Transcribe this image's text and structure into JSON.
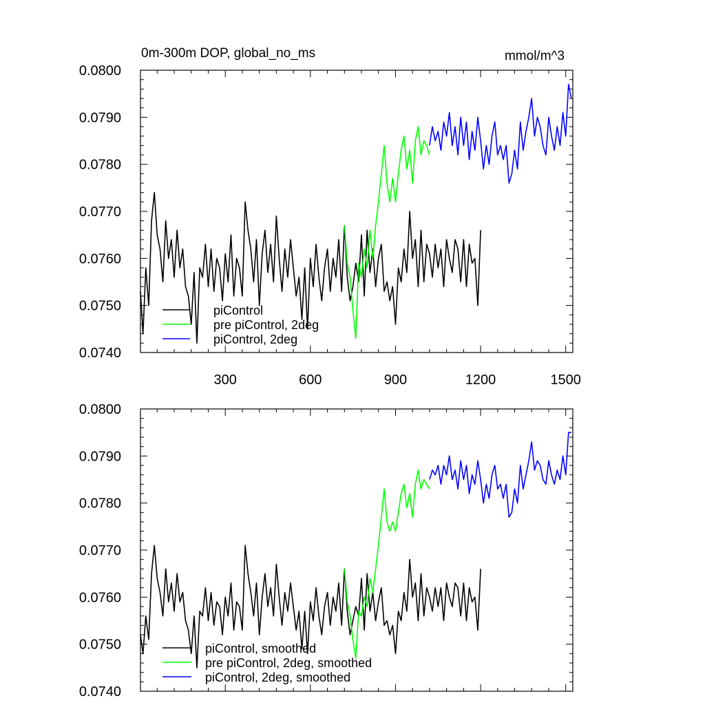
{
  "chart_data": [
    {
      "type": "line",
      "title": "0m-300m DOP, global_no_ms",
      "units": "mmol/m^3",
      "xlim": [
        1,
        1525
      ],
      "ylim": [
        0.074,
        0.08
      ],
      "xticks": [
        300,
        600,
        900,
        1200,
        1500
      ],
      "xtick_labels": [
        "300",
        "600",
        "900",
        "1200",
        "1500"
      ],
      "yticks": [
        0.074,
        0.075,
        0.076,
        0.077,
        0.078,
        0.079,
        0.08
      ],
      "ytick_labels": [
        "0.0740",
        "0.0750",
        "0.0760",
        "0.0770",
        "0.0780",
        "0.0790",
        "0.0800"
      ],
      "legend_position": "bottom-left",
      "series": [
        {
          "name": "piControl",
          "color": "#000000",
          "x": [
            1,
            10,
            20,
            30,
            40,
            50,
            60,
            70,
            80,
            90,
            100,
            110,
            120,
            130,
            140,
            150,
            160,
            170,
            180,
            190,
            200,
            210,
            220,
            230,
            240,
            250,
            260,
            270,
            280,
            290,
            300,
            310,
            320,
            330,
            340,
            350,
            360,
            370,
            380,
            390,
            400,
            410,
            420,
            430,
            440,
            450,
            460,
            470,
            480,
            490,
            500,
            510,
            520,
            530,
            540,
            550,
            560,
            570,
            580,
            590,
            600,
            610,
            620,
            630,
            640,
            650,
            660,
            670,
            680,
            690,
            700,
            710,
            720,
            730,
            740,
            750,
            760,
            770,
            780,
            790,
            800,
            810,
            820,
            830,
            840,
            850,
            860,
            870,
            880,
            890,
            900,
            910,
            920,
            930,
            940,
            950,
            960,
            970,
            980,
            990,
            1000,
            1010,
            1020,
            1030,
            1040,
            1050,
            1060,
            1070,
            1080,
            1090,
            1100,
            1110,
            1120,
            1130,
            1140,
            1150,
            1160,
            1170,
            1180,
            1190,
            1200
          ],
          "y": [
            0.0753,
            0.0744,
            0.0758,
            0.075,
            0.0768,
            0.0774,
            0.0765,
            0.0762,
            0.0755,
            0.0768,
            0.076,
            0.0764,
            0.0756,
            0.0766,
            0.0758,
            0.0762,
            0.0754,
            0.0752,
            0.0746,
            0.0757,
            0.0742,
            0.0758,
            0.0756,
            0.0763,
            0.0754,
            0.0762,
            0.0753,
            0.076,
            0.0758,
            0.0751,
            0.0761,
            0.0755,
            0.0765,
            0.0752,
            0.076,
            0.0758,
            0.0752,
            0.0772,
            0.0766,
            0.0762,
            0.0755,
            0.0764,
            0.075,
            0.0761,
            0.0766,
            0.0757,
            0.0763,
            0.0755,
            0.0769,
            0.076,
            0.0753,
            0.0762,
            0.0756,
            0.0764,
            0.0758,
            0.0752,
            0.0756,
            0.0747,
            0.0758,
            0.0745,
            0.076,
            0.0754,
            0.0763,
            0.0756,
            0.0751,
            0.0758,
            0.0762,
            0.0753,
            0.076,
            0.0756,
            0.0764,
            0.0753,
            0.0767,
            0.0756,
            0.0751,
            0.0754,
            0.0759,
            0.0755,
            0.0765,
            0.0752,
            0.0766,
            0.0757,
            0.0762,
            0.0754,
            0.076,
            0.0763,
            0.0753,
            0.0755,
            0.0751,
            0.0754,
            0.0746,
            0.0758,
            0.0755,
            0.0762,
            0.0757,
            0.077,
            0.076,
            0.0764,
            0.0754,
            0.0766,
            0.0755,
            0.0763,
            0.0761,
            0.0756,
            0.0763,
            0.0758,
            0.0762,
            0.0754,
            0.0764,
            0.076,
            0.0757,
            0.0764,
            0.0762,
            0.0755,
            0.0764,
            0.0754,
            0.0763,
            0.0759,
            0.076,
            0.075,
            0.0766
          ]
        },
        {
          "name": "pre piControl, 2deg",
          "color": "#00ff00",
          "x": [
            720,
            730,
            740,
            750,
            760,
            770,
            780,
            790,
            800,
            810,
            820,
            830,
            840,
            850,
            860,
            870,
            880,
            890,
            900,
            910,
            920,
            930,
            940,
            950,
            960,
            970,
            980,
            990,
            1000,
            1010,
            1020
          ],
          "y": [
            0.0767,
            0.0759,
            0.0756,
            0.0749,
            0.0743,
            0.0759,
            0.0756,
            0.0762,
            0.0758,
            0.0766,
            0.076,
            0.0767,
            0.0772,
            0.0778,
            0.0784,
            0.0776,
            0.0772,
            0.0777,
            0.0772,
            0.0778,
            0.0783,
            0.0786,
            0.0779,
            0.0783,
            0.0776,
            0.0785,
            0.0788,
            0.0782,
            0.0785,
            0.0784,
            0.0782
          ]
        },
        {
          "name": "piControl, 2deg",
          "color": "#0000ff",
          "x": [
            1020,
            1030,
            1040,
            1050,
            1060,
            1070,
            1080,
            1090,
            1100,
            1110,
            1120,
            1130,
            1140,
            1150,
            1160,
            1170,
            1180,
            1190,
            1200,
            1210,
            1220,
            1230,
            1240,
            1250,
            1260,
            1270,
            1280,
            1290,
            1300,
            1310,
            1320,
            1330,
            1340,
            1350,
            1360,
            1370,
            1380,
            1390,
            1400,
            1410,
            1420,
            1430,
            1440,
            1450,
            1460,
            1470,
            1480,
            1490,
            1500,
            1510,
            1520
          ],
          "y": [
            0.0784,
            0.0788,
            0.0785,
            0.0787,
            0.0783,
            0.0789,
            0.0786,
            0.0791,
            0.0784,
            0.0788,
            0.0782,
            0.079,
            0.0784,
            0.0789,
            0.0781,
            0.0787,
            0.0783,
            0.079,
            0.0785,
            0.0779,
            0.0784,
            0.078,
            0.0786,
            0.0789,
            0.0782,
            0.0784,
            0.0781,
            0.0784,
            0.0776,
            0.0778,
            0.0783,
            0.0779,
            0.0789,
            0.0783,
            0.0787,
            0.079,
            0.0794,
            0.0786,
            0.079,
            0.0788,
            0.0784,
            0.0782,
            0.079,
            0.0786,
            0.0783,
            0.0788,
            0.0784,
            0.0791,
            0.0786,
            0.0797,
            0.0794
          ]
        }
      ]
    },
    {
      "type": "line",
      "title": "",
      "xlim": [
        1,
        1525
      ],
      "ylim": [
        0.074,
        0.08
      ],
      "xticks": [
        300,
        600,
        900,
        1200,
        1500
      ],
      "yticks": [
        0.074,
        0.075,
        0.076,
        0.077,
        0.078,
        0.079,
        0.08
      ],
      "ytick_labels": [
        "0.0740",
        "0.0750",
        "0.0760",
        "0.0770",
        "0.0780",
        "0.0790",
        "0.0800"
      ],
      "legend_position": "bottom-left",
      "series": [
        {
          "name": "piControl, smoothed",
          "color": "#000000",
          "x": [
            1,
            10,
            20,
            30,
            40,
            50,
            60,
            70,
            80,
            90,
            100,
            110,
            120,
            130,
            140,
            150,
            160,
            170,
            180,
            190,
            200,
            210,
            220,
            230,
            240,
            250,
            260,
            270,
            280,
            290,
            300,
            310,
            320,
            330,
            340,
            350,
            360,
            370,
            380,
            390,
            400,
            410,
            420,
            430,
            440,
            450,
            460,
            470,
            480,
            490,
            500,
            510,
            520,
            530,
            540,
            550,
            560,
            570,
            580,
            590,
            600,
            610,
            620,
            630,
            640,
            650,
            660,
            670,
            680,
            690,
            700,
            710,
            720,
            730,
            740,
            750,
            760,
            770,
            780,
            790,
            800,
            810,
            820,
            830,
            840,
            850,
            860,
            870,
            880,
            890,
            900,
            910,
            920,
            930,
            940,
            950,
            960,
            970,
            980,
            990,
            1000,
            1010,
            1020,
            1030,
            1040,
            1050,
            1060,
            1070,
            1080,
            1090,
            1100,
            1110,
            1120,
            1130,
            1140,
            1150,
            1160,
            1170,
            1180,
            1190,
            1200
          ],
          "y": [
            0.0752,
            0.0748,
            0.0756,
            0.0751,
            0.0765,
            0.0771,
            0.0764,
            0.0761,
            0.0756,
            0.0766,
            0.0759,
            0.0763,
            0.0757,
            0.0765,
            0.0759,
            0.0761,
            0.0755,
            0.0753,
            0.0748,
            0.0756,
            0.0745,
            0.0757,
            0.0756,
            0.0762,
            0.0755,
            0.0761,
            0.0754,
            0.0759,
            0.0758,
            0.0752,
            0.076,
            0.0756,
            0.0763,
            0.0753,
            0.0759,
            0.0758,
            0.0753,
            0.0771,
            0.0765,
            0.0761,
            0.0756,
            0.0763,
            0.0752,
            0.076,
            0.0765,
            0.0758,
            0.0762,
            0.0756,
            0.0767,
            0.076,
            0.0754,
            0.0761,
            0.0757,
            0.0763,
            0.0758,
            0.0753,
            0.0757,
            0.0749,
            0.0757,
            0.0748,
            0.0759,
            0.0755,
            0.0762,
            0.0756,
            0.0752,
            0.0758,
            0.0761,
            0.0754,
            0.076,
            0.0757,
            0.0763,
            0.0754,
            0.0766,
            0.0757,
            0.0752,
            0.0755,
            0.0758,
            0.0756,
            0.0764,
            0.0753,
            0.0765,
            0.0757,
            0.0761,
            0.0755,
            0.0759,
            0.0762,
            0.0754,
            0.0755,
            0.0752,
            0.0754,
            0.0748,
            0.0757,
            0.0755,
            0.0761,
            0.0757,
            0.0768,
            0.076,
            0.0763,
            0.0755,
            0.0765,
            0.0756,
            0.0762,
            0.076,
            0.0757,
            0.0762,
            0.0758,
            0.0762,
            0.0755,
            0.0763,
            0.076,
            0.0758,
            0.0763,
            0.0762,
            0.0756,
            0.0763,
            0.0755,
            0.0762,
            0.0759,
            0.076,
            0.0753,
            0.0766
          ]
        },
        {
          "name": "pre piControl, 2deg, smoothed",
          "color": "#00ff00",
          "x": [
            720,
            730,
            740,
            750,
            760,
            770,
            780,
            790,
            800,
            810,
            820,
            830,
            840,
            850,
            860,
            870,
            880,
            890,
            900,
            910,
            920,
            930,
            940,
            950,
            960,
            970,
            980,
            990,
            1000,
            1010,
            1020
          ],
          "y": [
            0.0766,
            0.0759,
            0.0756,
            0.0751,
            0.0747,
            0.0757,
            0.0756,
            0.076,
            0.0758,
            0.0764,
            0.0761,
            0.0766,
            0.0771,
            0.0777,
            0.0783,
            0.0776,
            0.0774,
            0.0776,
            0.0774,
            0.0778,
            0.0782,
            0.0784,
            0.0779,
            0.0782,
            0.0777,
            0.0784,
            0.0787,
            0.0783,
            0.0785,
            0.0784,
            0.0783
          ]
        },
        {
          "name": "piControl, 2deg, smoothed",
          "color": "#0000ff",
          "x": [
            1020,
            1030,
            1040,
            1050,
            1060,
            1070,
            1080,
            1090,
            1100,
            1110,
            1120,
            1130,
            1140,
            1150,
            1160,
            1170,
            1180,
            1190,
            1200,
            1210,
            1220,
            1230,
            1240,
            1250,
            1260,
            1270,
            1280,
            1290,
            1300,
            1310,
            1320,
            1330,
            1340,
            1350,
            1360,
            1370,
            1380,
            1390,
            1400,
            1410,
            1420,
            1430,
            1440,
            1450,
            1460,
            1470,
            1480,
            1490,
            1500,
            1510,
            1520
          ],
          "y": [
            0.0785,
            0.0787,
            0.0786,
            0.0788,
            0.0784,
            0.0788,
            0.0786,
            0.079,
            0.0785,
            0.0787,
            0.0783,
            0.0789,
            0.0785,
            0.0788,
            0.0782,
            0.0786,
            0.0784,
            0.0789,
            0.0785,
            0.078,
            0.0784,
            0.0781,
            0.0786,
            0.0788,
            0.0783,
            0.0784,
            0.0781,
            0.0784,
            0.0777,
            0.0778,
            0.0783,
            0.078,
            0.0788,
            0.0783,
            0.0786,
            0.0789,
            0.0793,
            0.0787,
            0.0789,
            0.0788,
            0.0785,
            0.0784,
            0.0789,
            0.0786,
            0.0784,
            0.0787,
            0.0785,
            0.079,
            0.0786,
            0.0795,
            0.0795
          ]
        }
      ]
    }
  ]
}
